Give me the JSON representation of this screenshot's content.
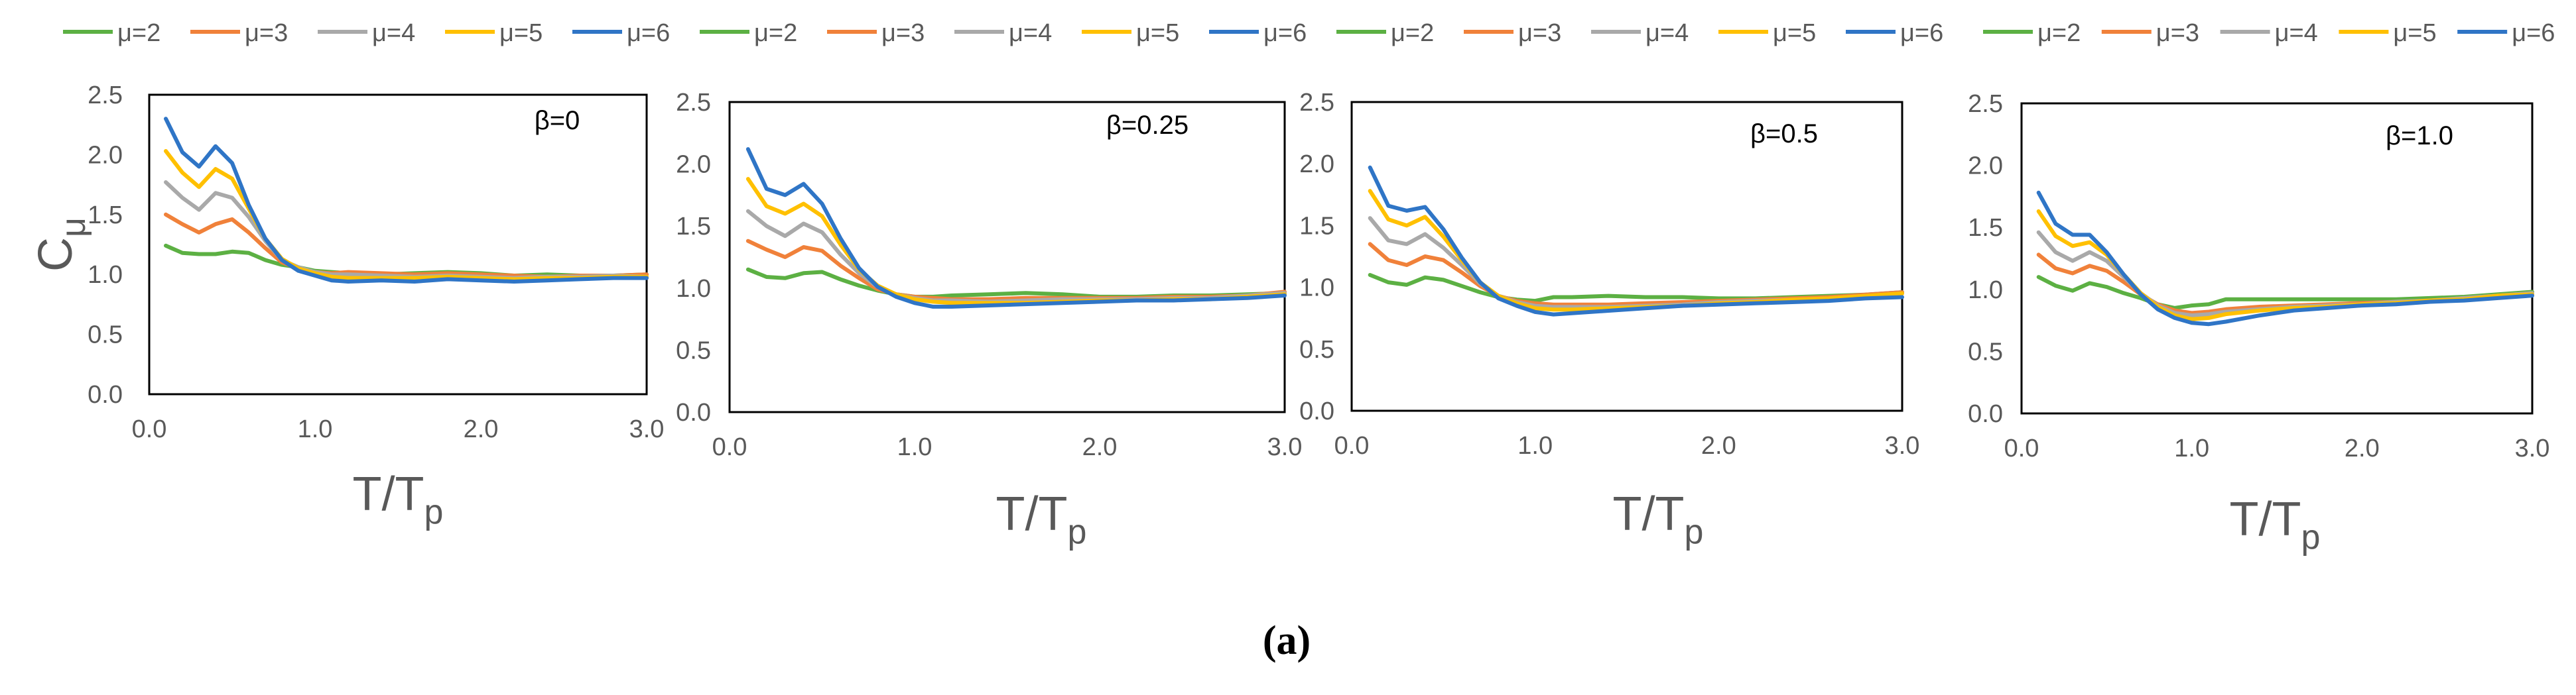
{
  "figure_label": "(a)",
  "colors": {
    "μ=2": "#5cb043",
    "μ=3": "#f0813a",
    "μ=4": "#a9a9a9",
    "μ=5": "#ffc000",
    "μ=6": "#2f75c6"
  },
  "chart_data": [
    {
      "type": "line",
      "panel": "β=0",
      "annotation": "β=0",
      "ylabel": "C",
      "ylabel_sub": "μ",
      "xlabel": "T/T",
      "xlabel_sub": "p",
      "xlim": [
        0,
        3
      ],
      "ylim": [
        0,
        2.5
      ],
      "x_ticks": [
        "0.0",
        "1.0",
        "2.0",
        "3.0"
      ],
      "y_ticks": [
        "0.0",
        "0.5",
        "1.0",
        "1.5",
        "2.0",
        "2.5"
      ],
      "legend": [
        "μ=2",
        "μ=3",
        "μ=4",
        "μ=5",
        "μ=6"
      ],
      "x": [
        0.1,
        0.2,
        0.3,
        0.4,
        0.5,
        0.6,
        0.7,
        0.8,
        0.9,
        1.0,
        1.1,
        1.2,
        1.4,
        1.6,
        1.8,
        2.0,
        2.2,
        2.4,
        2.6,
        2.8,
        3.0
      ],
      "series": [
        {
          "name": "μ=2",
          "values": [
            1.24,
            1.18,
            1.17,
            1.17,
            1.19,
            1.18,
            1.12,
            1.08,
            1.06,
            1.03,
            1.02,
            1.01,
            1.0,
            1.01,
            1.02,
            1.01,
            0.99,
            1.0,
            0.99,
            0.99,
            1.0
          ]
        },
        {
          "name": "μ=3",
          "values": [
            1.5,
            1.42,
            1.35,
            1.42,
            1.46,
            1.35,
            1.22,
            1.1,
            1.05,
            1.02,
            1.01,
            1.02,
            1.01,
            1.0,
            1.01,
            1.0,
            0.99,
            0.98,
            0.99,
            0.99,
            1.0
          ]
        },
        {
          "name": "μ=4",
          "values": [
            1.77,
            1.64,
            1.54,
            1.68,
            1.64,
            1.48,
            1.28,
            1.12,
            1.06,
            1.02,
            1.0,
            1.0,
            0.99,
            0.98,
            0.99,
            0.98,
            0.97,
            0.98,
            0.98,
            0.99,
            0.98
          ]
        },
        {
          "name": "μ=5",
          "values": [
            2.03,
            1.85,
            1.73,
            1.88,
            1.8,
            1.55,
            1.3,
            1.13,
            1.05,
            1.01,
            0.98,
            0.97,
            0.97,
            0.97,
            0.98,
            0.97,
            0.96,
            0.97,
            0.97,
            0.98,
            0.98
          ]
        },
        {
          "name": "μ=6",
          "values": [
            2.3,
            2.02,
            1.9,
            2.07,
            1.93,
            1.58,
            1.3,
            1.12,
            1.03,
            0.99,
            0.95,
            0.94,
            0.95,
            0.94,
            0.96,
            0.95,
            0.94,
            0.95,
            0.96,
            0.97,
            0.97
          ]
        }
      ]
    },
    {
      "type": "line",
      "panel": "β=0.25",
      "annotation": "β=0.25",
      "ylabel": "",
      "ylabel_sub": "",
      "xlabel": "T/T",
      "xlabel_sub": "p",
      "xlim": [
        0,
        3
      ],
      "ylim": [
        0,
        2.5
      ],
      "x_ticks": [
        "0.0",
        "1.0",
        "2.0",
        "3.0"
      ],
      "y_ticks": [
        "0.0",
        "0.5",
        "1.0",
        "1.5",
        "2.0",
        "2.5"
      ],
      "legend": [
        "μ=2",
        "μ=3",
        "μ=4",
        "μ=5",
        "μ=6"
      ],
      "x": [
        0.1,
        0.2,
        0.3,
        0.4,
        0.5,
        0.6,
        0.7,
        0.8,
        0.9,
        1.0,
        1.1,
        1.2,
        1.4,
        1.6,
        1.8,
        2.0,
        2.2,
        2.4,
        2.6,
        2.8,
        3.0
      ],
      "series": [
        {
          "name": "μ=2",
          "values": [
            1.15,
            1.09,
            1.08,
            1.12,
            1.13,
            1.07,
            1.02,
            0.98,
            0.95,
            0.93,
            0.93,
            0.94,
            0.95,
            0.96,
            0.95,
            0.93,
            0.93,
            0.94,
            0.94,
            0.95,
            0.96
          ]
        },
        {
          "name": "μ=3",
          "values": [
            1.38,
            1.31,
            1.25,
            1.33,
            1.3,
            1.18,
            1.08,
            0.99,
            0.95,
            0.93,
            0.92,
            0.91,
            0.91,
            0.92,
            0.92,
            0.92,
            0.92,
            0.93,
            0.93,
            0.94,
            0.97
          ]
        },
        {
          "name": "μ=4",
          "values": [
            1.62,
            1.5,
            1.42,
            1.52,
            1.45,
            1.27,
            1.12,
            1.01,
            0.95,
            0.92,
            0.9,
            0.9,
            0.89,
            0.9,
            0.91,
            0.91,
            0.91,
            0.92,
            0.92,
            0.94,
            0.96
          ]
        },
        {
          "name": "μ=5",
          "values": [
            1.88,
            1.66,
            1.6,
            1.68,
            1.58,
            1.35,
            1.15,
            1.02,
            0.95,
            0.91,
            0.89,
            0.88,
            0.88,
            0.88,
            0.89,
            0.9,
            0.9,
            0.91,
            0.91,
            0.93,
            0.95
          ]
        },
        {
          "name": "μ=6",
          "values": [
            2.12,
            1.8,
            1.75,
            1.84,
            1.68,
            1.4,
            1.16,
            1.01,
            0.93,
            0.88,
            0.85,
            0.85,
            0.86,
            0.87,
            0.88,
            0.89,
            0.9,
            0.9,
            0.91,
            0.92,
            0.94
          ]
        }
      ]
    },
    {
      "type": "line",
      "panel": "β=0.5",
      "annotation": "β=0.5",
      "ylabel": "",
      "ylabel_sub": "",
      "xlabel": "T/T",
      "xlabel_sub": "p",
      "xlim": [
        0,
        3
      ],
      "ylim": [
        0,
        2.5
      ],
      "x_ticks": [
        "0.0",
        "1.0",
        "2.0",
        "3.0"
      ],
      "y_ticks": [
        "0.0",
        "0.5",
        "1.0",
        "1.5",
        "2.0",
        "2.5"
      ],
      "legend": [
        "μ=2",
        "μ=3",
        "μ=4",
        "μ=5",
        "μ=6"
      ],
      "x": [
        0.1,
        0.2,
        0.3,
        0.4,
        0.5,
        0.6,
        0.7,
        0.8,
        0.9,
        1.0,
        1.1,
        1.2,
        1.4,
        1.6,
        1.8,
        2.0,
        2.2,
        2.4,
        2.6,
        2.8,
        3.0
      ],
      "series": [
        {
          "name": "μ=2",
          "values": [
            1.1,
            1.04,
            1.02,
            1.08,
            1.06,
            1.01,
            0.96,
            0.92,
            0.9,
            0.89,
            0.92,
            0.92,
            0.93,
            0.92,
            0.92,
            0.91,
            0.91,
            0.92,
            0.93,
            0.94,
            0.96
          ]
        },
        {
          "name": "μ=3",
          "values": [
            1.35,
            1.22,
            1.18,
            1.25,
            1.22,
            1.12,
            1.01,
            0.93,
            0.89,
            0.87,
            0.86,
            0.86,
            0.86,
            0.87,
            0.88,
            0.89,
            0.9,
            0.91,
            0.92,
            0.94,
            0.96
          ]
        },
        {
          "name": "μ=4",
          "values": [
            1.56,
            1.38,
            1.35,
            1.43,
            1.32,
            1.18,
            1.03,
            0.93,
            0.88,
            0.85,
            0.84,
            0.84,
            0.84,
            0.85,
            0.86,
            0.88,
            0.89,
            0.9,
            0.91,
            0.93,
            0.95
          ]
        },
        {
          "name": "μ=5",
          "values": [
            1.78,
            1.55,
            1.5,
            1.57,
            1.41,
            1.22,
            1.04,
            0.93,
            0.87,
            0.83,
            0.82,
            0.82,
            0.83,
            0.84,
            0.85,
            0.87,
            0.88,
            0.9,
            0.91,
            0.93,
            0.95
          ]
        },
        {
          "name": "μ=6",
          "values": [
            1.97,
            1.66,
            1.62,
            1.65,
            1.47,
            1.24,
            1.04,
            0.91,
            0.85,
            0.8,
            0.78,
            0.79,
            0.81,
            0.83,
            0.85,
            0.86,
            0.87,
            0.88,
            0.89,
            0.91,
            0.92
          ]
        }
      ]
    },
    {
      "type": "line",
      "panel": "β=1.0",
      "annotation": "β=1.0",
      "ylabel": "",
      "ylabel_sub": "",
      "xlabel": "T/T",
      "xlabel_sub": "p",
      "xlim": [
        0,
        3
      ],
      "ylim": [
        0,
        2.5
      ],
      "x_ticks": [
        "0.0",
        "1.0",
        "2.0",
        "3.0"
      ],
      "y_ticks": [
        "0.0",
        "0.5",
        "1.0",
        "1.5",
        "2.0",
        "2.5"
      ],
      "legend": [
        "μ=2",
        "μ=3",
        "μ=4",
        "μ=5",
        "μ=6"
      ],
      "x": [
        0.1,
        0.2,
        0.3,
        0.4,
        0.5,
        0.6,
        0.7,
        0.8,
        0.9,
        1.0,
        1.1,
        1.2,
        1.4,
        1.6,
        1.8,
        2.0,
        2.2,
        2.4,
        2.6,
        2.8,
        3.0
      ],
      "series": [
        {
          "name": "μ=2",
          "values": [
            1.1,
            1.03,
            0.99,
            1.05,
            1.02,
            0.97,
            0.93,
            0.88,
            0.85,
            0.87,
            0.88,
            0.92,
            0.92,
            0.92,
            0.92,
            0.92,
            0.92,
            0.93,
            0.94,
            0.96,
            0.98
          ]
        },
        {
          "name": "μ=3",
          "values": [
            1.28,
            1.17,
            1.13,
            1.19,
            1.15,
            1.06,
            0.96,
            0.88,
            0.83,
            0.81,
            0.82,
            0.84,
            0.86,
            0.87,
            0.88,
            0.89,
            0.9,
            0.91,
            0.93,
            0.95,
            0.97
          ]
        },
        {
          "name": "μ=4",
          "values": [
            1.46,
            1.3,
            1.23,
            1.3,
            1.23,
            1.1,
            0.97,
            0.87,
            0.81,
            0.79,
            0.8,
            0.82,
            0.84,
            0.86,
            0.87,
            0.88,
            0.9,
            0.91,
            0.93,
            0.95,
            0.97
          ]
        },
        {
          "name": "μ=5",
          "values": [
            1.63,
            1.43,
            1.35,
            1.38,
            1.28,
            1.12,
            0.97,
            0.86,
            0.79,
            0.76,
            0.77,
            0.8,
            0.83,
            0.85,
            0.86,
            0.88,
            0.89,
            0.91,
            0.92,
            0.95,
            0.96
          ]
        },
        {
          "name": "μ=6",
          "values": [
            1.78,
            1.53,
            1.44,
            1.44,
            1.3,
            1.12,
            0.96,
            0.84,
            0.77,
            0.73,
            0.72,
            0.74,
            0.79,
            0.83,
            0.85,
            0.87,
            0.88,
            0.9,
            0.91,
            0.93,
            0.95
          ]
        }
      ]
    }
  ]
}
